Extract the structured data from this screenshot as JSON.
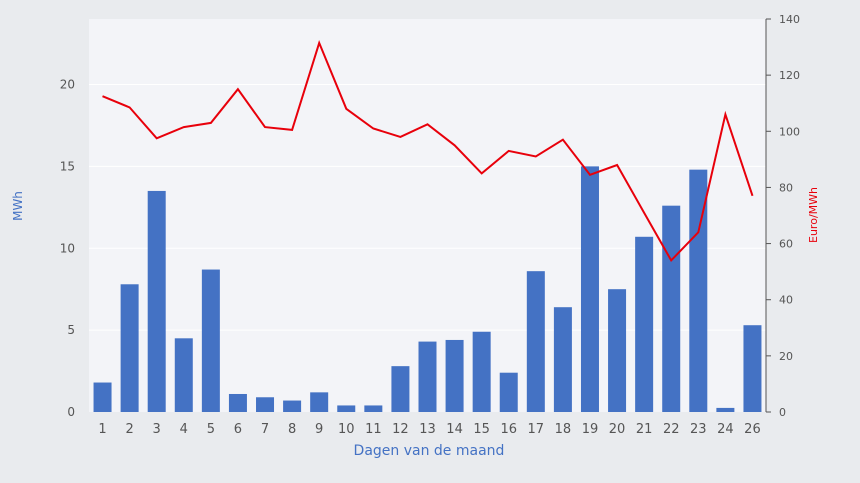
{
  "chart_data": {
    "type": "bar",
    "categories": [
      "1",
      "2",
      "3",
      "4",
      "5",
      "6",
      "7",
      "8",
      "9",
      "10",
      "11",
      "12",
      "13",
      "14",
      "15",
      "16",
      "17",
      "18",
      "19",
      "20",
      "21",
      "22",
      "23",
      "24",
      "26"
    ],
    "xlabel": "Dagen van de maand",
    "ylabel_left": "MWh",
    "ylabel_right": "Euro/MWh",
    "ylim_left": [
      0,
      24
    ],
    "yticks_left": [
      0,
      5,
      10,
      15,
      20
    ],
    "ylim_right": [
      0,
      140
    ],
    "yticks_right": [
      0,
      20,
      40,
      60,
      80,
      100,
      120,
      140
    ],
    "grid": true,
    "series": [
      {
        "type": "bar",
        "axis": "left",
        "color": "#4472c4",
        "values": [
          1.8,
          7.8,
          13.5,
          4.5,
          8.7,
          1.1,
          0.9,
          0.7,
          1.2,
          0.4,
          0.4,
          2.8,
          4.3,
          4.4,
          4.9,
          2.4,
          8.6,
          6.4,
          15.0,
          7.5,
          10.7,
          12.6,
          14.8,
          0.25,
          5.3
        ]
      },
      {
        "type": "line",
        "axis": "right",
        "color": "#e8000b",
        "values": [
          112.5,
          108.5,
          97.5,
          101.5,
          103,
          115,
          101.5,
          100.5,
          131.5,
          108,
          101,
          98,
          102.5,
          95,
          85,
          93,
          91,
          97,
          84.5,
          88,
          71,
          54,
          64,
          106,
          77
        ]
      }
    ]
  },
  "colors": {
    "plot_background": "#f3f4f8",
    "grid": "#ffffff",
    "axis_line": "#555555",
    "tick_text": "#555555",
    "left_label": "#4472c4",
    "right_label": "#e8000b",
    "x_label": "#4472c4"
  }
}
